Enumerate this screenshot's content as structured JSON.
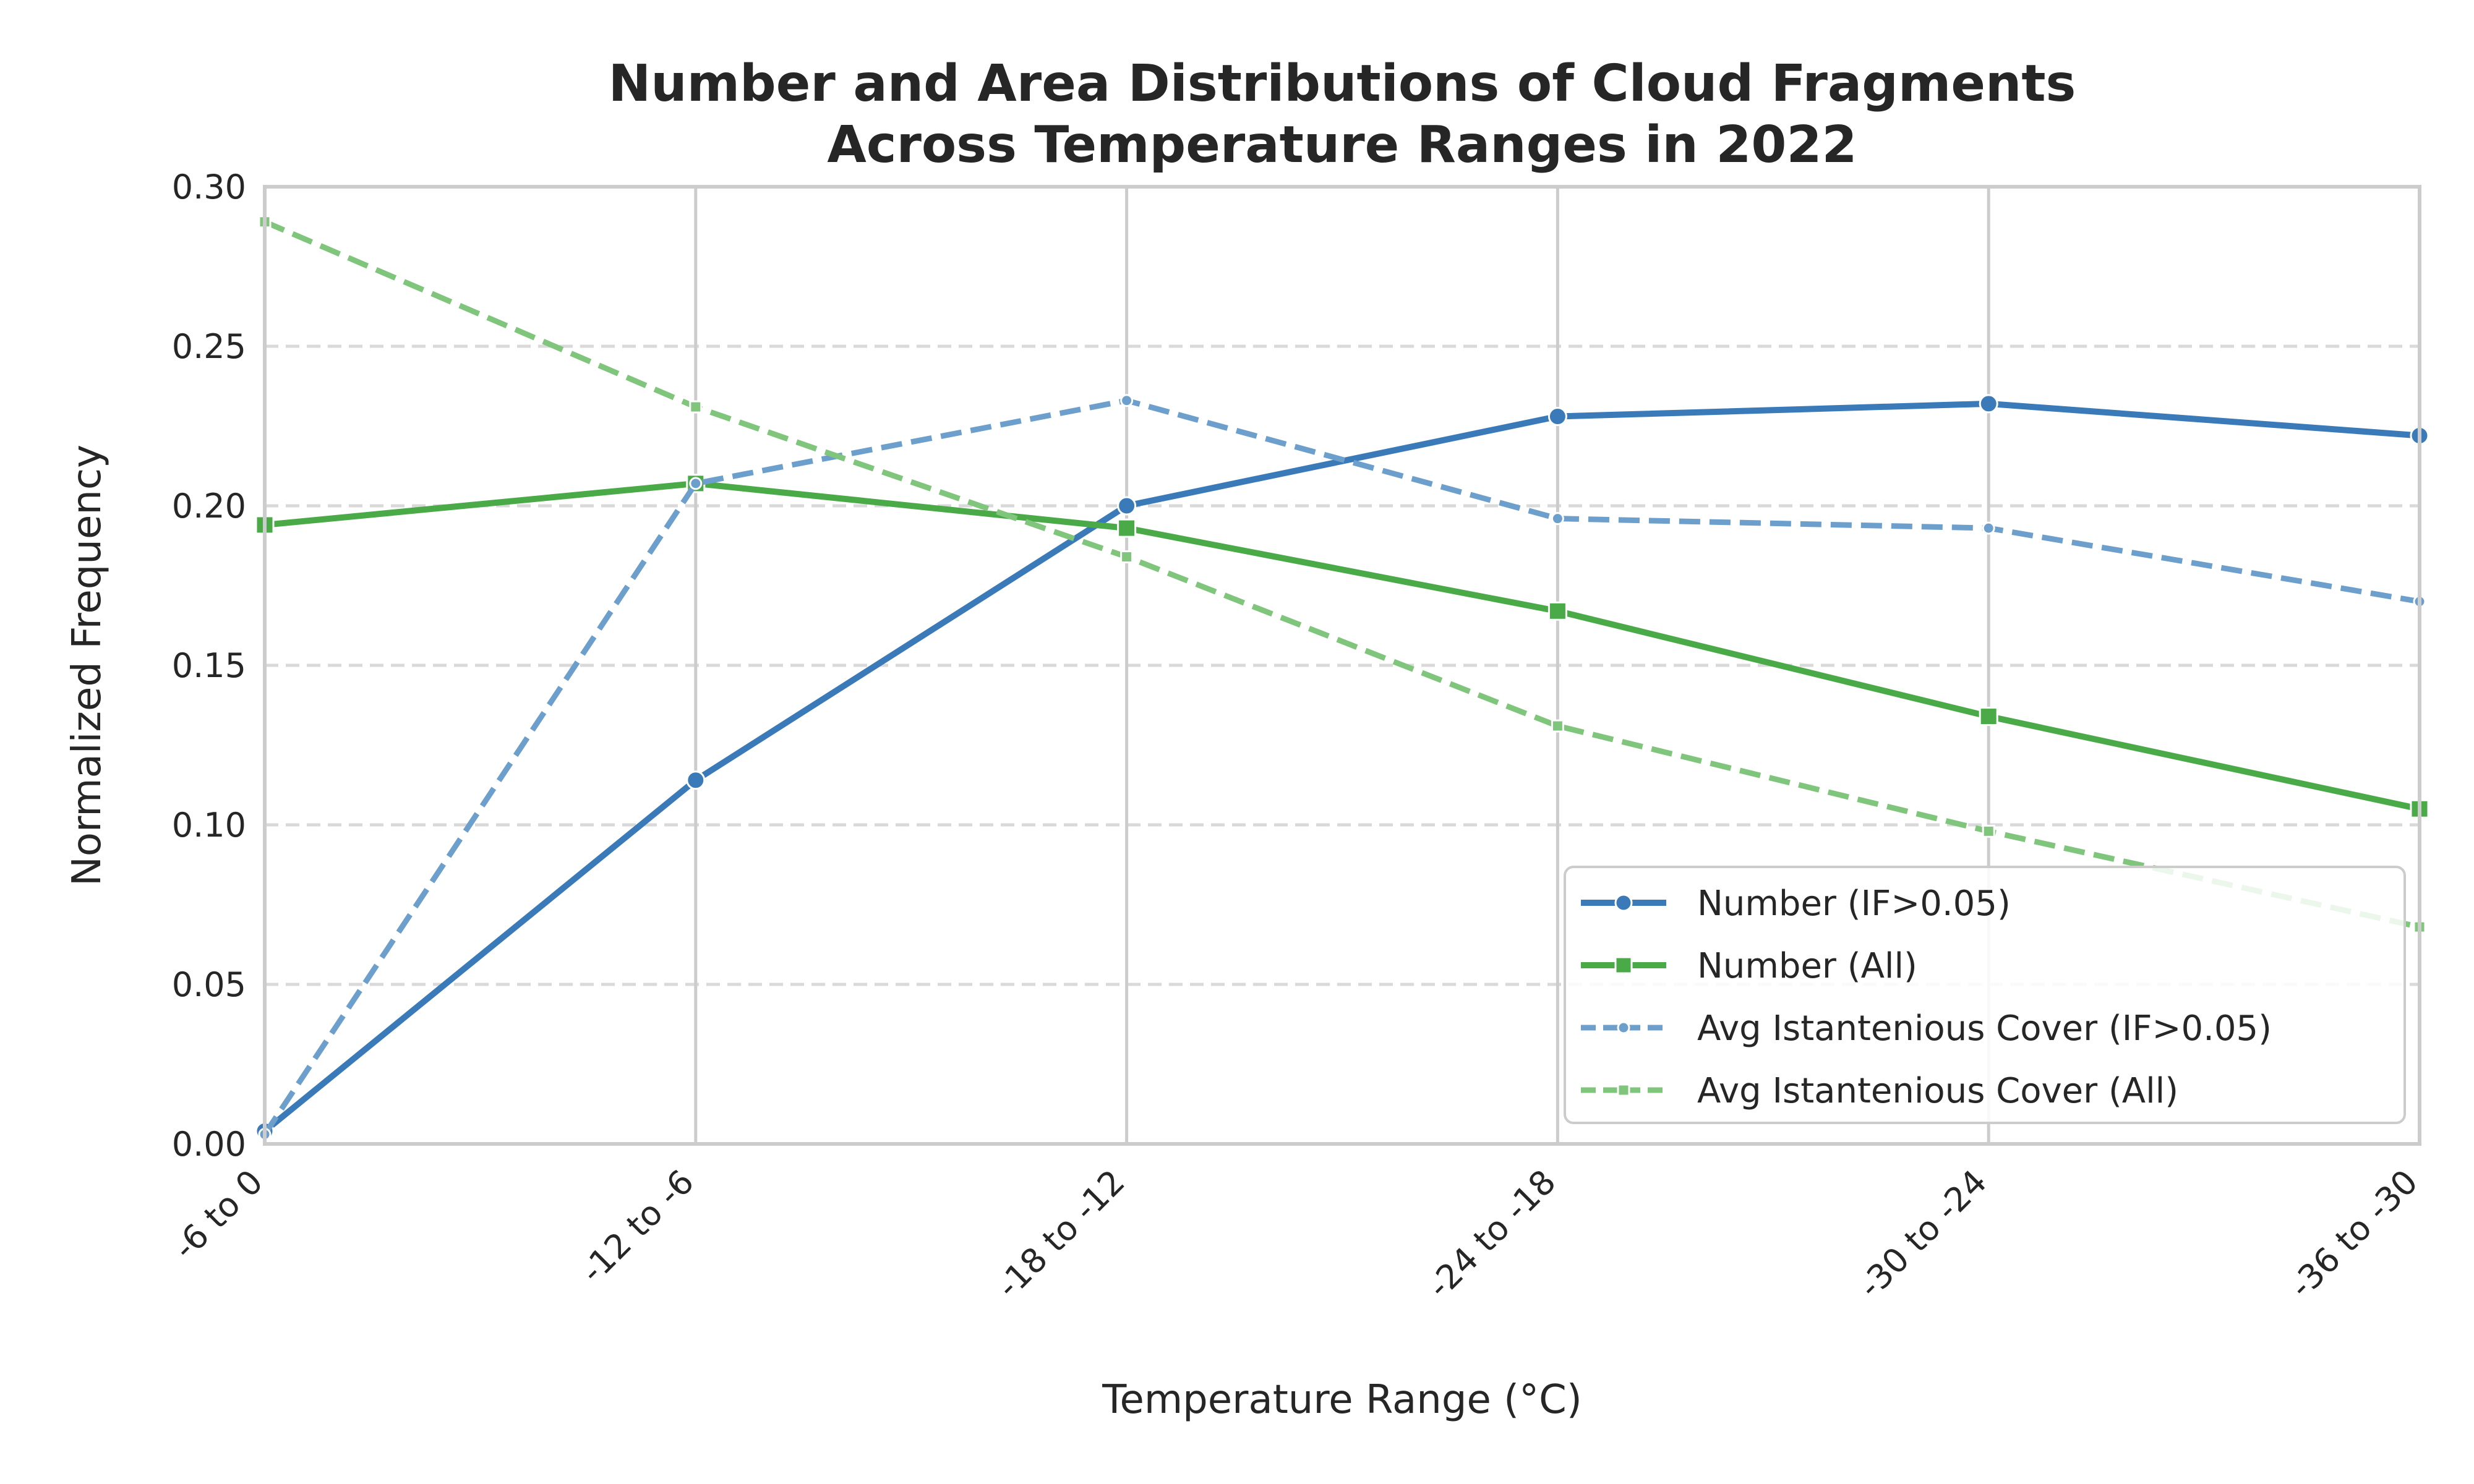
{
  "chart_data": {
    "type": "line",
    "title": [
      "Number and Area Distributions of Cloud Fragments",
      "Across Temperature Ranges in 2022"
    ],
    "xlabel": "Temperature Range (°C)",
    "ylabel": "Normalized Frequency",
    "categories": [
      "-6 to 0",
      "-12 to -6",
      "-18 to -12",
      "-24 to -18",
      "-30 to -24",
      "-36 to -30"
    ],
    "ylim": [
      0,
      0.3
    ],
    "yticks": [
      "0.00",
      "0.05",
      "0.10",
      "0.15",
      "0.20",
      "0.25",
      "0.30"
    ],
    "grid": true,
    "legend_position": "lower-right",
    "series": [
      {
        "name": "Number (IF>0.05)",
        "values": [
          0.004,
          0.114,
          0.2,
          0.228,
          0.232,
          0.222
        ],
        "color": "#3a7ab8",
        "dash": "solid",
        "marker": "circle"
      },
      {
        "name": "Number (All)",
        "values": [
          0.194,
          0.207,
          0.193,
          0.167,
          0.134,
          0.105
        ],
        "color": "#4aaa48",
        "dash": "solid",
        "marker": "square"
      },
      {
        "name": "Avg Istantenious Cover (IF>0.05)",
        "values": [
          0.003,
          0.207,
          0.233,
          0.196,
          0.193,
          0.17
        ],
        "color": "#6c9fcb",
        "dash": "dashed",
        "marker": "circle"
      },
      {
        "name": "Avg Istantenious Cover (All)",
        "values": [
          0.289,
          0.231,
          0.184,
          0.131,
          0.098,
          0.068
        ],
        "color": "#7fc57b",
        "dash": "dashed",
        "marker": "square"
      }
    ]
  }
}
